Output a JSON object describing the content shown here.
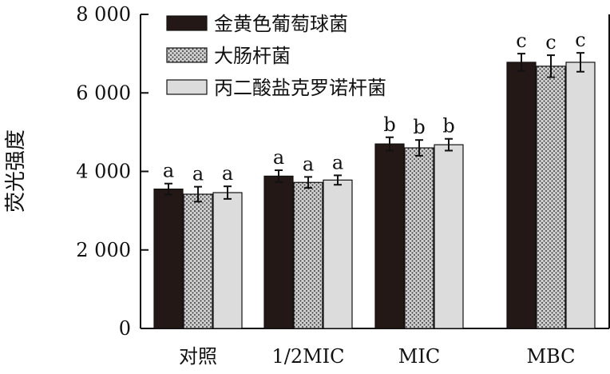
{
  "chart_data": {
    "type": "bar",
    "ylabel": "荧光强度",
    "ylim": [
      0,
      8000
    ],
    "yticks": [
      0,
      2000,
      4000,
      6000,
      8000
    ],
    "ytick_labels": [
      "0",
      "2 000",
      "4 000",
      "6 000",
      "8 000"
    ],
    "categories": [
      "对照",
      "1/2MIC",
      "MIC",
      "MBC"
    ],
    "series": [
      {
        "name": "金黄色葡萄球菌",
        "color": "#231815",
        "pattern": "solid",
        "values": [
          3550,
          3880,
          4700,
          6780
        ],
        "errors": [
          140,
          150,
          170,
          220
        ],
        "labels": [
          "a",
          "a",
          "b",
          "c"
        ]
      },
      {
        "name": "大肠杆菌",
        "color": "#a0a0a0",
        "pattern": "dotted",
        "values": [
          3420,
          3720,
          4600,
          6680
        ],
        "errors": [
          190,
          140,
          200,
          280
        ],
        "labels": [
          "a",
          "a",
          "b",
          "c"
        ]
      },
      {
        "name": "丙二酸盐克罗诺杆菌",
        "color": "#dcdcdc",
        "pattern": "light",
        "values": [
          3460,
          3780,
          4680,
          6780
        ],
        "errors": [
          160,
          120,
          150,
          240
        ],
        "labels": [
          "a",
          "a",
          "b",
          "c"
        ]
      }
    ],
    "legend_position": "top-left",
    "grid": false
  }
}
